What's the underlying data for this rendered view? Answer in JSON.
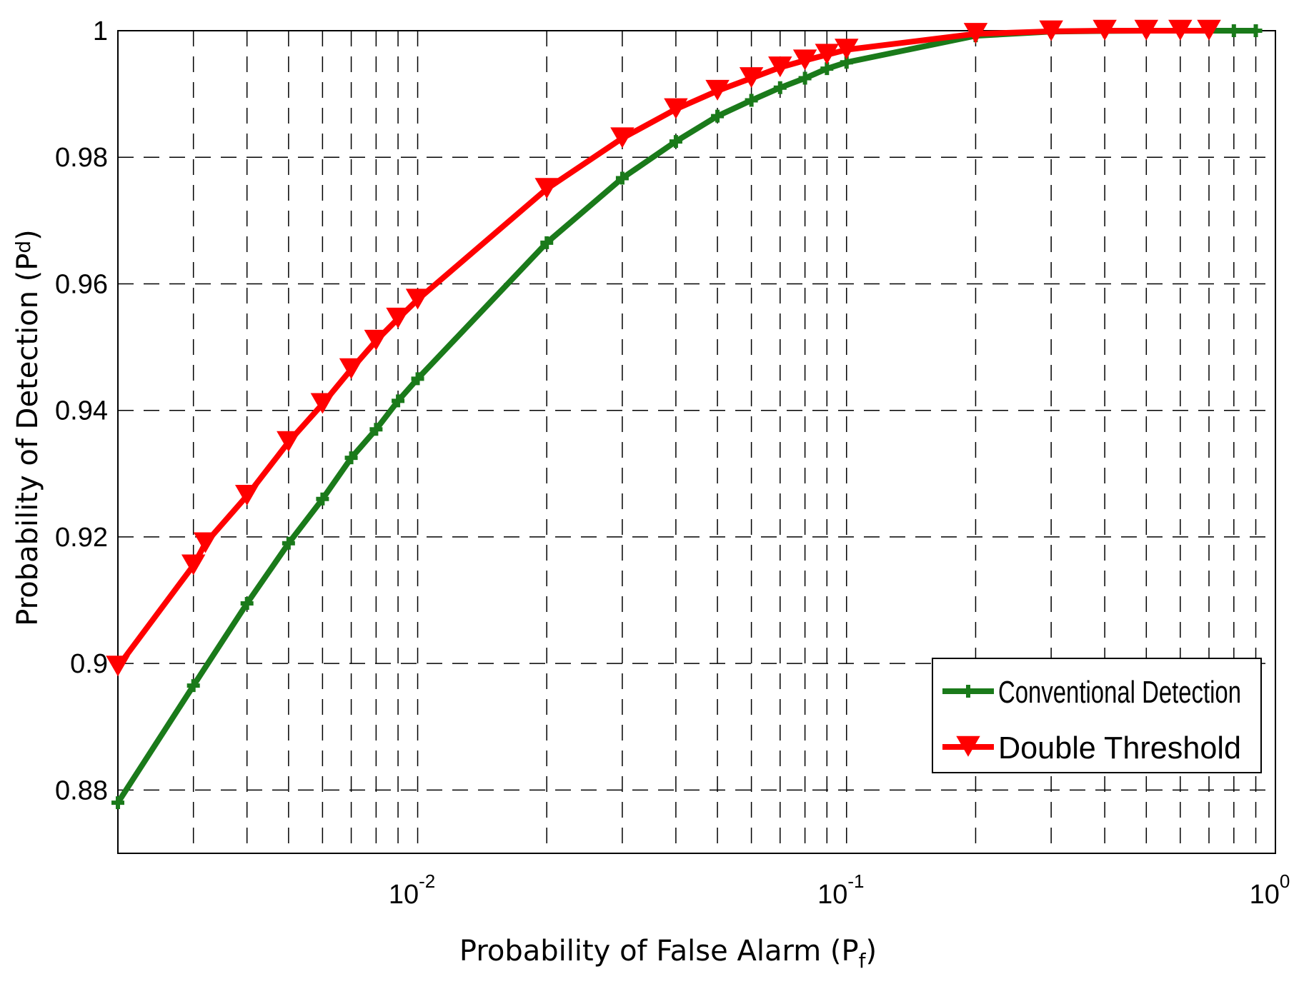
{
  "chart_data": {
    "type": "line",
    "title": "",
    "xlabel": "Probability of False Alarm (P",
    "xlabel_sub": "f",
    "xlabel_close": ")",
    "ylabel": "Probability of Detection (P",
    "ylabel_sub": "d",
    "ylabel_close": ")",
    "xscale": "log",
    "xlim": [
      0.002,
      1
    ],
    "ylim": [
      0.87,
      1.0
    ],
    "grid": true,
    "legend_position": "bottom-right",
    "x_ticks": [
      {
        "value": 0.01,
        "base": "10",
        "exp": "-2"
      },
      {
        "value": 0.1,
        "base": "10",
        "exp": "-1"
      },
      {
        "value": 1,
        "base": "10",
        "exp": "0"
      }
    ],
    "y_ticks": [
      {
        "value": 0.88,
        "label": "0.88"
      },
      {
        "value": 0.9,
        "label": "0.9"
      },
      {
        "value": 0.92,
        "label": "0.92"
      },
      {
        "value": 0.94,
        "label": "0.94"
      },
      {
        "value": 0.96,
        "label": "0.96"
      },
      {
        "value": 0.98,
        "label": "0.98"
      },
      {
        "value": 1.0,
        "label": "1"
      }
    ],
    "series": [
      {
        "name": "Conventional Detection",
        "color": "#1a7a1a",
        "marker": "plus",
        "x": [
          0.002,
          0.003,
          0.004,
          0.005,
          0.006,
          0.007,
          0.008,
          0.009,
          0.01,
          0.02,
          0.03,
          0.04,
          0.05,
          0.06,
          0.07,
          0.08,
          0.09,
          0.1,
          0.2,
          0.3,
          0.4,
          0.5,
          0.6,
          0.7,
          0.8,
          0.9
        ],
        "y": [
          0.878,
          0.8965,
          0.9095,
          0.919,
          0.926,
          0.9325,
          0.937,
          0.9415,
          0.945,
          0.9665,
          0.9767,
          0.9825,
          0.9865,
          0.989,
          0.991,
          0.9925,
          0.994,
          0.995,
          0.9992,
          0.99985,
          0.99995,
          1.0,
          1.0,
          1.0,
          1.0,
          1.0
        ]
      },
      {
        "name": "Double Threshold",
        "color": "#ff0000",
        "marker": "triangle-down",
        "x": [
          0.002,
          0.003,
          0.0032,
          0.004,
          0.005,
          0.006,
          0.007,
          0.008,
          0.009,
          0.01,
          0.02,
          0.03,
          0.04,
          0.05,
          0.06,
          0.07,
          0.08,
          0.09,
          0.1,
          0.2,
          0.3,
          0.4,
          0.5,
          0.6,
          0.7
        ],
        "y": [
          0.8995,
          0.9155,
          0.919,
          0.9265,
          0.935,
          0.941,
          0.9465,
          0.951,
          0.9545,
          0.9575,
          0.975,
          0.983,
          0.9876,
          0.9905,
          0.9925,
          0.9942,
          0.9953,
          0.9962,
          0.997,
          0.9995,
          0.9999,
          1.0,
          1.0,
          1.0,
          1.0
        ]
      }
    ]
  }
}
